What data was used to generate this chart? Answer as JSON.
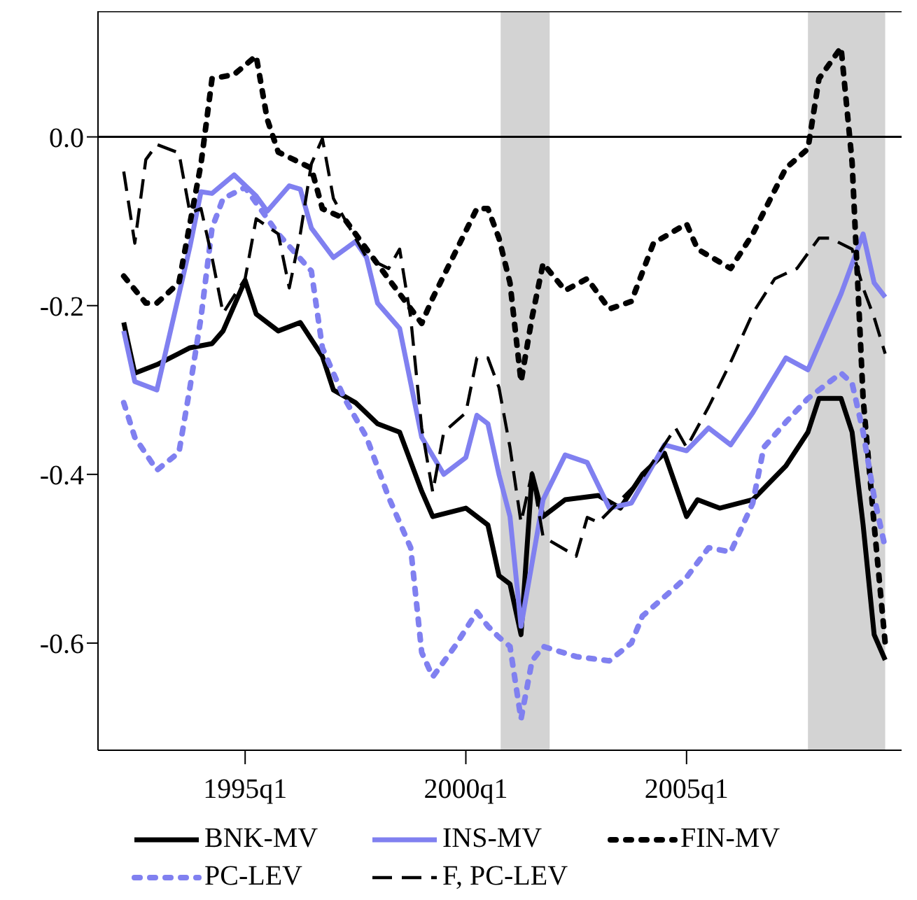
{
  "chart_data": {
    "type": "line",
    "xlim": [
      "1991-09",
      "2009-11-15"
    ],
    "ylim": [
      -0.727,
      0.149
    ],
    "xticks": [
      {
        "value": "1995-01",
        "label": "1995q1"
      },
      {
        "value": "2000-01",
        "label": "2000q1"
      },
      {
        "value": "2005-01",
        "label": "2005q1"
      }
    ],
    "yticks": [
      {
        "value": 0,
        "label": "0.0"
      },
      {
        "value": -0.2,
        "label": "-0.2"
      },
      {
        "value": -0.4,
        "label": "-0.4"
      },
      {
        "value": -0.6,
        "label": "-0.6"
      }
    ],
    "grid": false,
    "legend": "bottom",
    "marker": "none",
    "ref_lines": [
      {
        "axis": "y",
        "value": 0,
        "color": "#000000",
        "line_style": "solid"
      }
    ],
    "bands": [
      {
        "axis": "x",
        "from": "2000-10-15",
        "to": "2001-11-25",
        "color": "#d3d3d3"
      },
      {
        "axis": "x",
        "from": "2007-10",
        "to": "2009-07",
        "color": "#d3d3d3"
      }
    ],
    "series": [
      {
        "name": "BNK-MV",
        "color": "#000000",
        "line_style": "solid",
        "x": [
          "1992-04",
          "1992-07",
          "1993-01",
          "1993-10",
          "1994-04",
          "1994-07",
          "1995-01",
          "1995-04",
          "1995-10",
          "1996-04",
          "1996-10",
          "1997-01",
          "1997-07",
          "1998-01",
          "1998-07",
          "1999-01",
          "1999-04",
          "2000-01",
          "2000-07",
          "2000-10",
          "2001-01",
          "2001-04",
          "2001-07",
          "2001-10",
          "2002-04",
          "2003-01",
          "2003-07",
          "2004-01",
          "2004-07",
          "2005-01",
          "2005-04",
          "2005-10",
          "2006-07",
          "2007-04",
          "2007-10",
          "2008-01",
          "2008-07",
          "2008-10",
          "2009-01",
          "2009-04",
          "2009-07"
        ],
        "values": [
          -0.22,
          -0.28,
          -0.27,
          -0.25,
          -0.245,
          -0.23,
          -0.17,
          -0.21,
          -0.23,
          -0.22,
          -0.26,
          -0.3,
          -0.315,
          -0.34,
          -0.35,
          -0.42,
          -0.45,
          -0.44,
          -0.46,
          -0.52,
          -0.53,
          -0.59,
          -0.4,
          -0.45,
          -0.43,
          -0.425,
          -0.44,
          -0.4,
          -0.375,
          -0.45,
          -0.43,
          -0.44,
          -0.43,
          -0.39,
          -0.35,
          -0.31,
          -0.31,
          -0.35,
          -0.46,
          -0.59,
          -0.62
        ]
      },
      {
        "name": "INS-MV",
        "color": "#8080f0",
        "line_style": "solid",
        "x": [
          "1992-04",
          "1992-07",
          "1993-01",
          "1993-10",
          "1994-01",
          "1994-04",
          "1994-10",
          "1995-04",
          "1995-07",
          "1996-01",
          "1996-04",
          "1996-07",
          "1997-01",
          "1997-07",
          "1997-10",
          "1998-01",
          "1998-07",
          "1999-01",
          "1999-07",
          "2000-01",
          "2000-04",
          "2000-07",
          "2000-10",
          "2001-01",
          "2001-04",
          "2001-10",
          "2002-04",
          "2002-10",
          "2003-04",
          "2003-10",
          "2004-07",
          "2005-01",
          "2005-07",
          "2006-01",
          "2006-07",
          "2007-04",
          "2007-10",
          "2008-07",
          "2009-01",
          "2009-04",
          "2009-07"
        ],
        "values": [
          -0.23,
          -0.29,
          -0.3,
          -0.13,
          -0.065,
          -0.067,
          -0.045,
          -0.07,
          -0.088,
          -0.058,
          -0.062,
          -0.108,
          -0.143,
          -0.124,
          -0.143,
          -0.197,
          -0.227,
          -0.356,
          -0.4,
          -0.38,
          -0.33,
          -0.34,
          -0.4,
          -0.45,
          -0.58,
          -0.43,
          -0.377,
          -0.386,
          -0.44,
          -0.434,
          -0.365,
          -0.372,
          -0.345,
          -0.365,
          -0.327,
          -0.262,
          -0.276,
          -0.186,
          -0.115,
          -0.173,
          -0.19
        ]
      },
      {
        "name": "FIN-MV",
        "color": "#000000",
        "line_style": "dotted",
        "x": [
          "1992-04",
          "1992-10",
          "1993-01",
          "1993-07",
          "1994-01",
          "1994-04",
          "1994-10",
          "1995-04",
          "1995-07",
          "1995-10",
          "1996-07",
          "1996-10",
          "1997-04",
          "1997-10",
          "1998-07",
          "1999-01",
          "1999-04",
          "1999-10",
          "2000-04",
          "2000-07",
          "2000-10",
          "2001-01",
          "2001-04",
          "2001-07",
          "2001-10",
          "2002-04",
          "2002-10",
          "2003-04",
          "2003-10",
          "2004-04",
          "2005-01",
          "2005-04",
          "2006-01",
          "2006-07",
          "2007-04",
          "2007-10",
          "2008-01",
          "2008-07",
          "2008-10",
          "2009-01",
          "2009-04",
          "2009-07"
        ],
        "values": [
          -0.165,
          -0.197,
          -0.197,
          -0.173,
          -0.032,
          0.069,
          0.074,
          0.096,
          0.021,
          -0.018,
          -0.037,
          -0.085,
          -0.097,
          -0.133,
          -0.186,
          -0.221,
          -0.191,
          -0.138,
          -0.085,
          -0.085,
          -0.12,
          -0.173,
          -0.29,
          -0.214,
          -0.15,
          -0.182,
          -0.168,
          -0.204,
          -0.195,
          -0.126,
          -0.103,
          -0.133,
          -0.156,
          -0.115,
          -0.037,
          -0.014,
          0.069,
          0.106,
          -0.03,
          -0.31,
          -0.46,
          -0.6
        ]
      },
      {
        "name": "PC-LEV",
        "color": "#8080f0",
        "line_style": "dotted",
        "x": [
          "1992-04",
          "1992-07",
          "1993-01",
          "1993-07",
          "1993-10",
          "1994-01",
          "1994-04",
          "1994-07",
          "1995-01",
          "1995-10",
          "1996-07",
          "1996-10",
          "1997-04",
          "1997-10",
          "1998-04",
          "1998-10",
          "1999-01",
          "1999-04",
          "1999-10",
          "2000-04",
          "2000-07",
          "2000-10",
          "2001-01",
          "2001-04",
          "2001-07",
          "2001-10",
          "2002-07",
          "2003-04",
          "2003-10",
          "2004-01",
          "2004-07",
          "2005-01",
          "2005-07",
          "2006-01",
          "2006-07",
          "2006-10",
          "2007-04",
          "2007-10",
          "2008-07",
          "2008-10",
          "2009-01",
          "2009-04",
          "2009-07"
        ],
        "values": [
          -0.315,
          -0.356,
          -0.395,
          -0.374,
          -0.297,
          -0.214,
          -0.108,
          -0.073,
          -0.06,
          -0.115,
          -0.159,
          -0.25,
          -0.31,
          -0.356,
          -0.427,
          -0.487,
          -0.611,
          -0.64,
          -0.604,
          -0.563,
          -0.58,
          -0.593,
          -0.604,
          -0.69,
          -0.621,
          -0.604,
          -0.616,
          -0.621,
          -0.6,
          -0.568,
          -0.545,
          -0.522,
          -0.487,
          -0.492,
          -0.434,
          -0.368,
          -0.338,
          -0.31,
          -0.28,
          -0.292,
          -0.35,
          -0.427,
          -0.487
        ]
      },
      {
        "name": "F, PC-LEV",
        "color": "#000000",
        "line_style": "dashed",
        "x": [
          "1992-04",
          "1992-07",
          "1992-10",
          "1993-01",
          "1993-07",
          "1993-10",
          "1994-01",
          "1994-04",
          "1994-07",
          "1995-01",
          "1995-04",
          "1995-10",
          "1996-01",
          "1996-04",
          "1996-07",
          "1996-10",
          "1997-01",
          "1997-04",
          "1997-10",
          "1998-04",
          "1998-07",
          "1998-10",
          "1999-01",
          "1999-04",
          "1999-07",
          "2000-01",
          "2000-04",
          "2000-07",
          "2000-10",
          "2001-01",
          "2001-04",
          "2001-07",
          "2001-10",
          "2002-07",
          "2002-10",
          "2003-01",
          "2004-01",
          "2004-10",
          "2005-01",
          "2005-07",
          "2006-01",
          "2006-07",
          "2007-01",
          "2007-07",
          "2008-01",
          "2008-04",
          "2008-10",
          "2009-01",
          "2009-04",
          "2009-07"
        ],
        "values": [
          -0.041,
          -0.126,
          -0.027,
          -0.009,
          -0.019,
          -0.09,
          -0.085,
          -0.143,
          -0.209,
          -0.168,
          -0.097,
          -0.115,
          -0.179,
          -0.115,
          -0.032,
          -0.002,
          -0.073,
          -0.097,
          -0.143,
          -0.156,
          -0.133,
          -0.214,
          -0.345,
          -0.421,
          -0.35,
          -0.327,
          -0.262,
          -0.262,
          -0.297,
          -0.368,
          -0.457,
          -0.398,
          -0.474,
          -0.497,
          -0.451,
          -0.457,
          -0.404,
          -0.345,
          -0.368,
          -0.32,
          -0.267,
          -0.209,
          -0.168,
          -0.156,
          -0.12,
          -0.12,
          -0.133,
          -0.179,
          -0.214,
          -0.257
        ]
      }
    ]
  }
}
